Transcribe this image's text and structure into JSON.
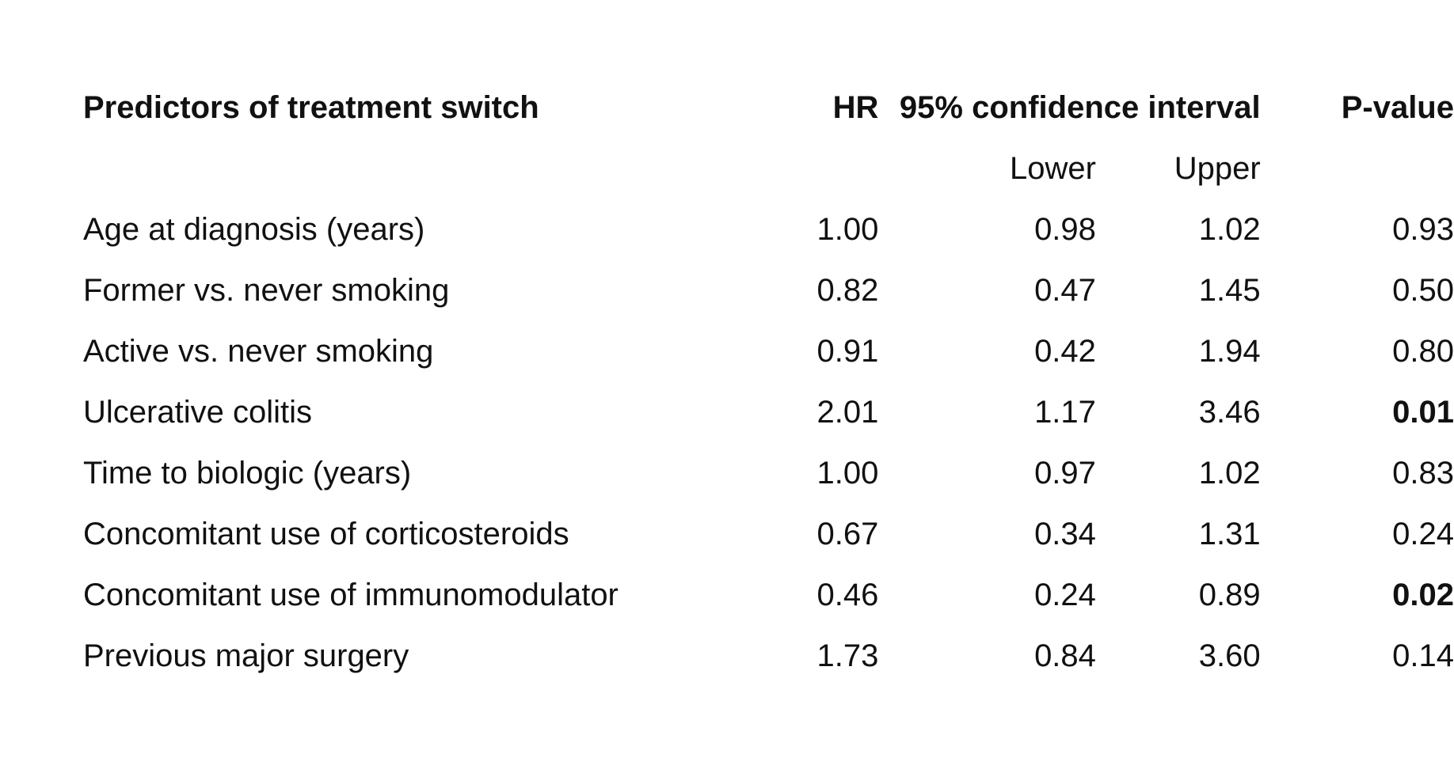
{
  "table": {
    "headers": {
      "predictor": "Predictors of treatment switch",
      "hr": "HR",
      "ci": "95% confidence interval",
      "p_value": "P-value"
    },
    "subheaders": {
      "lower": "Lower",
      "upper": "Upper"
    },
    "rows": [
      {
        "predictor": "Age at diagnosis (years)",
        "hr": "1.00",
        "lower": "0.98",
        "upper": "1.02",
        "p": "0.93",
        "p_bold": false
      },
      {
        "predictor": "Former vs. never smoking",
        "hr": "0.82",
        "lower": "0.47",
        "upper": "1.45",
        "p": "0.50",
        "p_bold": false
      },
      {
        "predictor": "Active vs. never smoking",
        "hr": "0.91",
        "lower": "0.42",
        "upper": "1.94",
        "p": "0.80",
        "p_bold": false
      },
      {
        "predictor": "Ulcerative colitis",
        "hr": "2.01",
        "lower": "1.17",
        "upper": "3.46",
        "p": "0.01",
        "p_bold": true
      },
      {
        "predictor": "Time to biologic (years)",
        "hr": "1.00",
        "lower": "0.97",
        "upper": "1.02",
        "p": "0.83",
        "p_bold": false
      },
      {
        "predictor": "Concomitant use of corticosteroids",
        "hr": "0.67",
        "lower": "0.34",
        "upper": "1.31",
        "p": "0.24",
        "p_bold": false
      },
      {
        "predictor": "Concomitant use of immunomodulator",
        "hr": "0.46",
        "lower": "0.24",
        "upper": "0.89",
        "p": "0.02",
        "p_bold": true
      },
      {
        "predictor": "Previous major surgery",
        "hr": "1.73",
        "lower": "0.84",
        "upper": "3.60",
        "p": "0.14",
        "p_bold": false
      }
    ]
  }
}
